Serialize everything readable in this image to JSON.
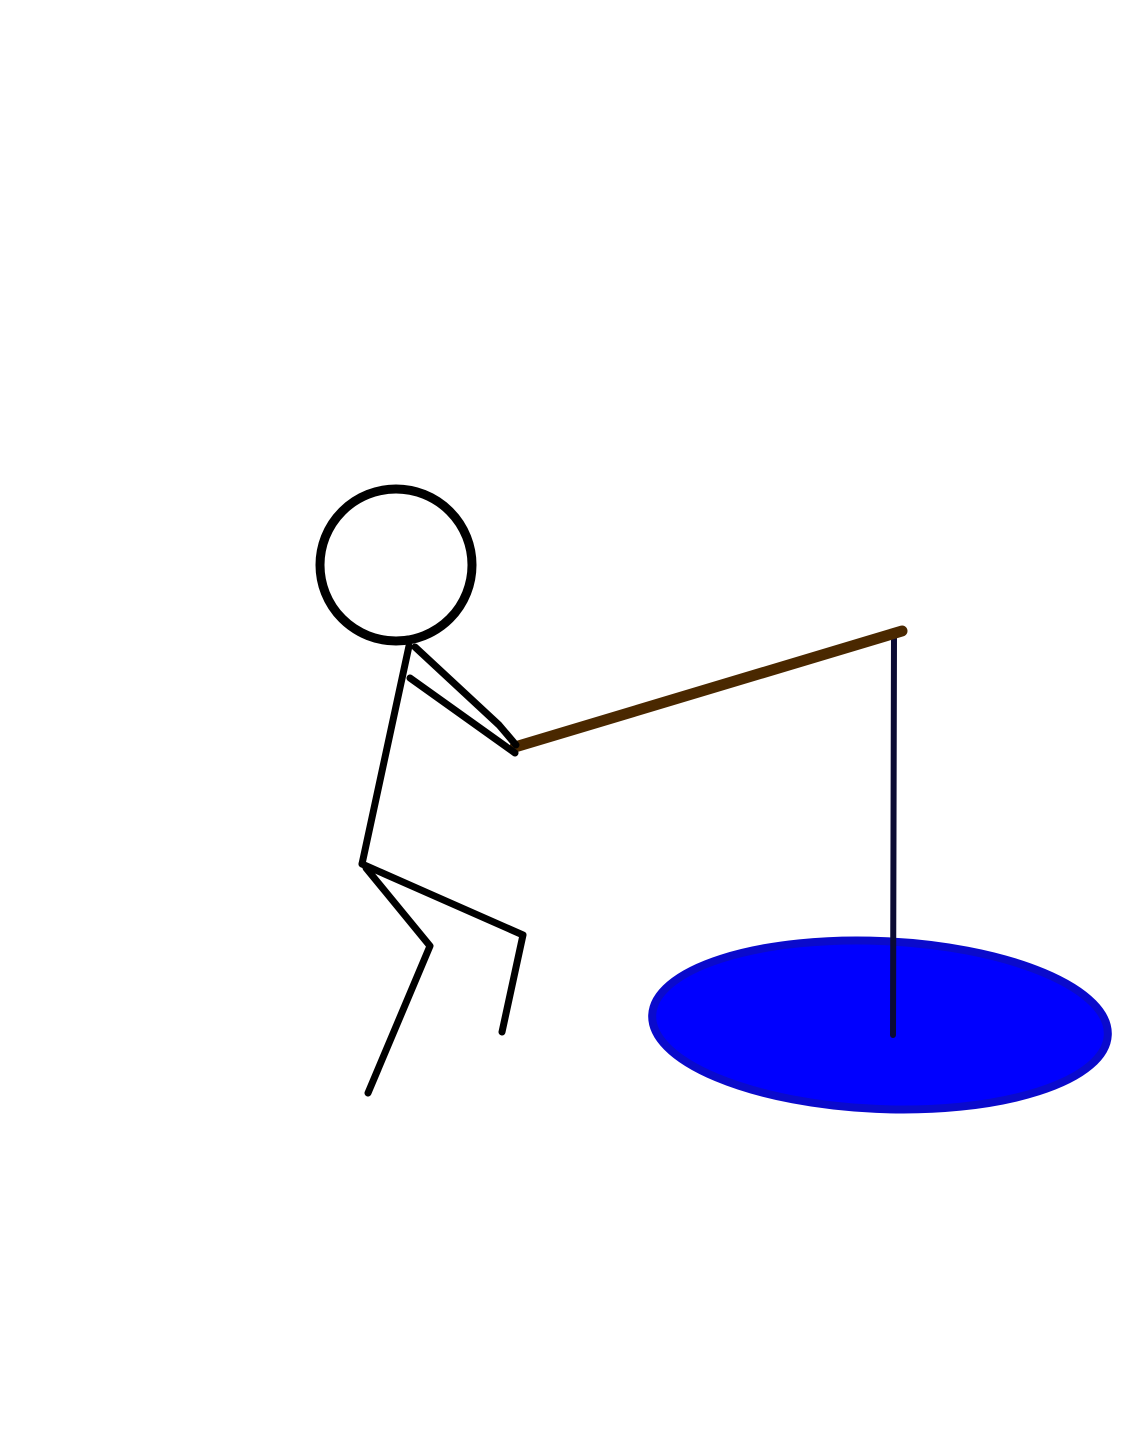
{
  "colors": {
    "background": "#ffffff",
    "figure": "#000000",
    "rod": "#4a2800",
    "fishing_line": "#0a0a33",
    "water_fill": "#0000ff",
    "water_edge": "#0a0acc"
  },
  "elements": {
    "figure": "stick-figure",
    "rod": "fishing-rod",
    "line": "fishing-line",
    "water": "ice-fishing-hole"
  }
}
